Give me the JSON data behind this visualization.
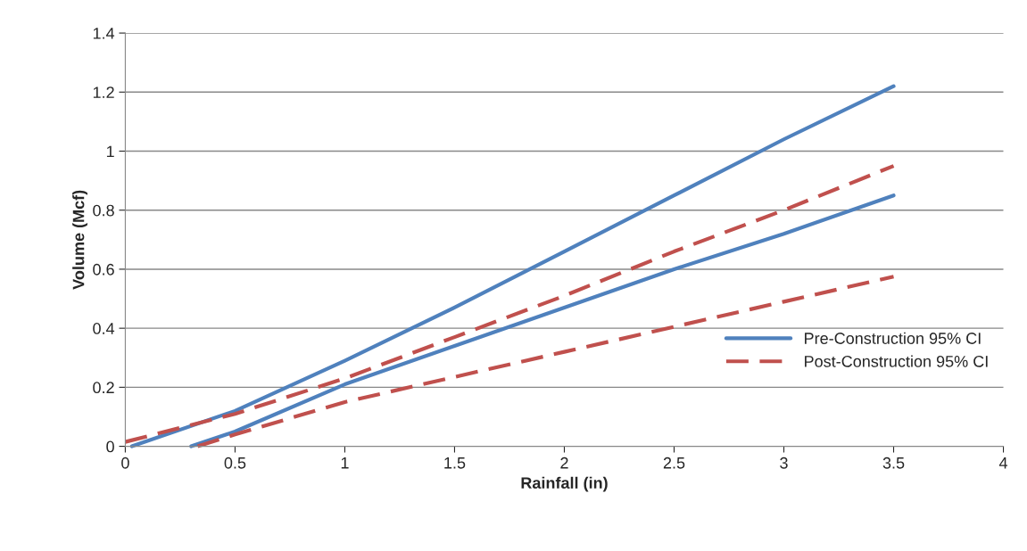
{
  "chart_data": {
    "type": "line",
    "xlabel": "Rainfall (in)",
    "ylabel": "Volume (Mcf)",
    "xlim": [
      0,
      4
    ],
    "xticks": [
      0,
      0.5,
      1,
      1.5,
      2,
      2.5,
      3,
      3.5,
      4
    ],
    "ylim": [
      0,
      1.4
    ],
    "yticks": [
      0,
      {
        "value": 0.2,
        "label": "0.2"
      },
      {
        "value": 0.4,
        "label": "0.4"
      },
      {
        "value": 0.6,
        "label": "0.6"
      },
      {
        "value": 0.8,
        "label": "0.8"
      },
      1,
      {
        "value": 1.2,
        "label": "1.2"
      },
      {
        "value": 1.4,
        "label": "1.4"
      }
    ],
    "grid": "y",
    "legend": "right",
    "marker": "none",
    "series": [
      {
        "name": "Pre-Construction 95% CI",
        "color": "#4f81bd",
        "line_style": "solid",
        "x": [
          0.03,
          0.5,
          1,
          1.5,
          2,
          2.5,
          3,
          3.5
        ],
        "values": [
          0,
          0.12,
          0.29,
          0.47,
          0.66,
          0.85,
          1.04,
          1.22
        ]
      },
      {
        "color": "#4f81bd",
        "line_style": "solid",
        "x": [
          0.3,
          0.5,
          1,
          1.5,
          2,
          2.5,
          3,
          3.5
        ],
        "values": [
          0,
          0.05,
          0.21,
          0.34,
          0.47,
          0.6,
          0.72,
          0.85
        ]
      },
      {
        "name": "Post-Construction 95% CI",
        "color": "#c0504d",
        "line_style": "dashed",
        "x": [
          0,
          0.5,
          1,
          1.5,
          2,
          2.5,
          3,
          3.5
        ],
        "values": [
          0.015,
          0.11,
          0.23,
          0.37,
          0.51,
          0.66,
          0.8,
          0.95
        ]
      },
      {
        "color": "#c0504d",
        "line_style": "dashed",
        "x": [
          0.33,
          0.5,
          1,
          1.5,
          2,
          2.5,
          3,
          3.5
        ],
        "values": [
          0,
          0.04,
          0.15,
          0.235,
          0.32,
          0.405,
          0.49,
          0.575
        ]
      }
    ]
  }
}
